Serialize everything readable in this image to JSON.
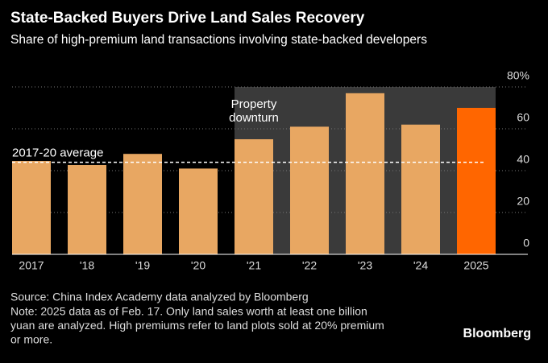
{
  "chart_data": {
    "type": "bar",
    "title": "State-Backed Buyers Drive Land Sales Recovery",
    "subtitle": "Share of high-premium land transactions involving state-backed developers",
    "categories": [
      "2017",
      "'18",
      "'19",
      "'20",
      "'21",
      "'22",
      "'23",
      "'24",
      "2025"
    ],
    "values": [
      44.6,
      42.7,
      48,
      41,
      55,
      61,
      77,
      62,
      70
    ],
    "colors": [
      "#e8a762",
      "#e8a762",
      "#e8a762",
      "#e8a762",
      "#e8a762",
      "#e8a762",
      "#e8a762",
      "#e8a762",
      "#ff6600"
    ],
    "ylim": [
      0,
      80
    ],
    "yticks": [
      {
        "value": 80,
        "label": "80%"
      },
      60,
      40,
      20,
      0
    ],
    "grid": true,
    "reference_line": {
      "value": 44,
      "label": "2017-20 average"
    },
    "shaded_range": {
      "from": "'21",
      "to": "2025",
      "label_lines": [
        "Property",
        "downturn"
      ]
    },
    "source": "Source: China Index Academy data analyzed by Bloomberg",
    "note_lines": [
      "Note: 2025 data as of Feb. 17. Only land sales worth at least one billion",
      "yuan are analyzed. High premiums refer to land plots sold at 20% premium",
      "or more."
    ],
    "brand": "Bloomberg"
  }
}
